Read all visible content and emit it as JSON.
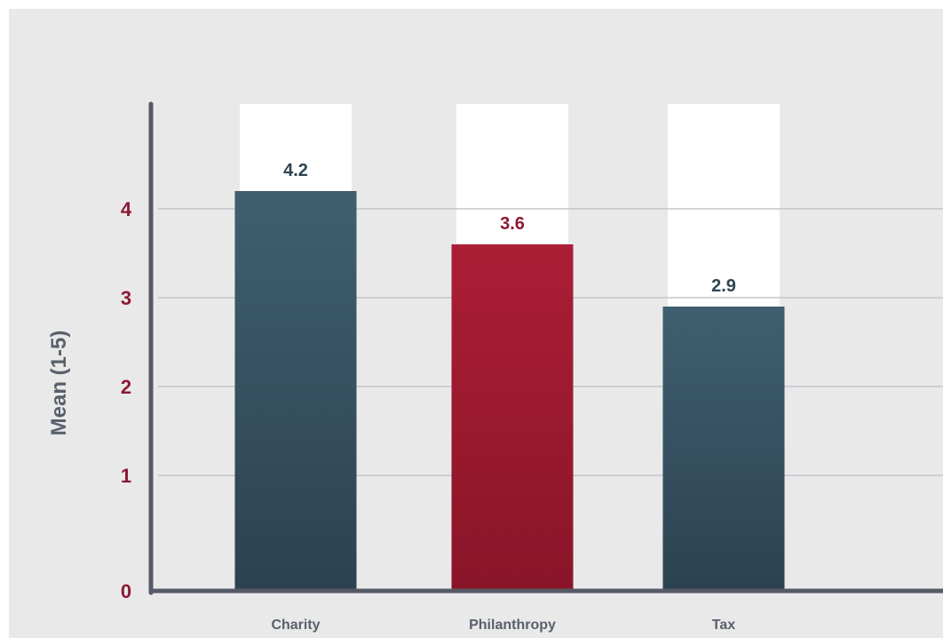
{
  "chart_data": {
    "type": "bar",
    "categories": [
      "Charity",
      "Philanthropy",
      "Tax"
    ],
    "values": [
      4.2,
      3.6,
      2.9
    ],
    "value_labels": [
      "4.2",
      "3.6",
      "2.9"
    ],
    "ylabel": "Mean (1-5)",
    "yticks": [
      0,
      1,
      2,
      3,
      4
    ],
    "ylim": [
      0,
      4.7
    ],
    "grid": true,
    "colors": {
      "bars": [
        "#3a5464",
        "#a01c30",
        "#3a5464"
      ],
      "value_labels": [
        "#2e4452",
        "#8e1a2e",
        "#2e4452"
      ],
      "tick_labels": "#8b1b33",
      "axis_title": "#59606b",
      "axis_line": "#565a66",
      "grid": "#c4c6cb",
      "panel": "#e9e9ea",
      "max_column": "#ffffff"
    }
  }
}
